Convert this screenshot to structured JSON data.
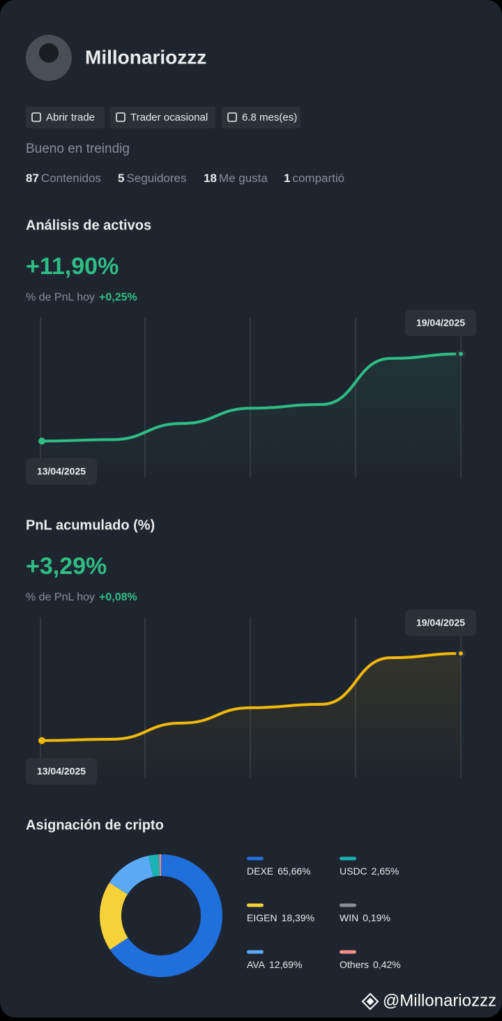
{
  "profile": {
    "name": "Millonariozzz",
    "tags": [
      "Abrir trade",
      "Trader ocasional",
      "6.8 mes(es)"
    ],
    "bio": "Bueno en treindig",
    "stats": [
      {
        "value": 87,
        "label": "Contenidos"
      },
      {
        "value": 5,
        "label": "Seguidores"
      },
      {
        "value": 18,
        "label": "Me gusta"
      },
      {
        "value": 1,
        "label": "compartió"
      }
    ]
  },
  "chart_data": [
    {
      "type": "line",
      "title": "Análisis de activos",
      "headline": "+11,90%",
      "subtitle": "% de PnL hoy",
      "subtitle_value": "+0,25%",
      "categories": [
        "13/04/2025",
        null,
        null,
        null,
        null,
        null,
        "19/04/2025"
      ],
      "values": [
        0,
        0.2,
        2.4,
        4.5,
        5.0,
        11.3,
        11.9
      ],
      "color": "#2ebd85",
      "ylim": [
        -5,
        16.9
      ]
    },
    {
      "type": "line",
      "title": "PnL acumulado (%)",
      "headline": "+3,29%",
      "subtitle": "% de PnL hoy",
      "subtitle_value": "+0,08%",
      "categories": [
        "13/04/2025",
        null,
        null,
        null,
        null,
        null,
        "19/04/2025"
      ],
      "values": [
        0,
        0.05,
        0.66,
        1.24,
        1.37,
        3.13,
        3.29
      ],
      "color": "#f0b90b",
      "ylim": [
        -1.4,
        4.66
      ]
    },
    {
      "type": "donut",
      "title": "Asignación de cripto",
      "categories": [
        "DEXE",
        "EIGEN",
        "AVA",
        "USDC",
        "WIN",
        "Others"
      ],
      "values": [
        65.66,
        18.39,
        12.69,
        2.65,
        0.19,
        0.42
      ],
      "value_labels": [
        "65,66%",
        "18,39%",
        "12,69%",
        "2,65%",
        "0,19%",
        "0,42%"
      ],
      "colors": [
        "#1f6fdd",
        "#f5d13a",
        "#5aa9f5",
        "#1bb3b3",
        "#8a8f98",
        "#f28b8b"
      ]
    }
  ],
  "footer": "@Millonariozzz"
}
